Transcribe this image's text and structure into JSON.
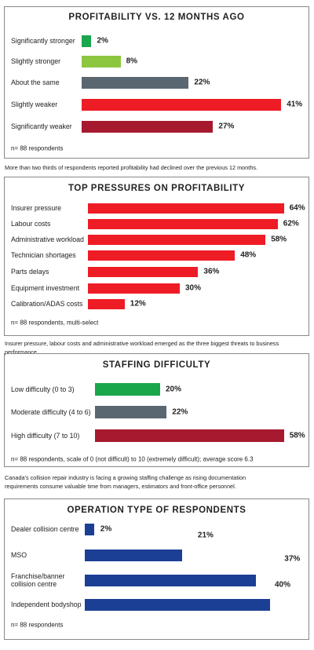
{
  "chart_data": [
    {
      "type": "bar",
      "title": "PROFITABILITY VS. 12 MONTHS AGO",
      "categories": [
        "Significantly stronger",
        "Slightly stronger",
        "About the same",
        "Slightly weaker",
        "Significantly weaker"
      ],
      "values": [
        2,
        8,
        22,
        41,
        27
      ],
      "value_labels": [
        "2%",
        "8%",
        "22%",
        "41%",
        "27%"
      ],
      "colors": [
        "#1aa64a",
        "#8cc63f",
        "#5b6770",
        "#ee1c25",
        "#a6192e"
      ],
      "note": "n= 88 respondents",
      "caption": "More than two thirds of respondents reported profitability had declined over the previous 12 months."
    },
    {
      "type": "bar",
      "title": "TOP PRESSURES ON PROFITABILITY",
      "categories": [
        "Insurer pressure",
        "Labour costs",
        "Administrative workload",
        "Technician shortages",
        "Parts delays",
        "Equipment investment",
        "Calibration/ADAS costs"
      ],
      "values": [
        64,
        62,
        58,
        48,
        36,
        30,
        12
      ],
      "value_labels": [
        "64%",
        "62%",
        "58%",
        "48%",
        "36%",
        "30%",
        "12%"
      ],
      "color": "#ee1c25",
      "note": "n= 88 respondents, multi-select",
      "caption": "Insurer pressure, labour costs and administrative workload emerged as the three biggest threats to business performance."
    },
    {
      "type": "bar",
      "title": "STAFFING DIFFICULTY",
      "categories": [
        "Low difficulty (0 to 3)",
        "Moderate difficulty (4 to 6)",
        "High difficulty (7 to 10)"
      ],
      "values": [
        20,
        22,
        58
      ],
      "value_labels": [
        "20%",
        "22%",
        "58%"
      ],
      "colors": [
        "#1aa64a",
        "#5b6770",
        "#a6192e"
      ],
      "note": "n= 88 respondents, scale of 0 (not difficult) to 10 (extremely difficult); average score 6.3",
      "caption": "Canada's collision repair industry is facing a growing staffing challenge as rising documentation requirements consume valuable time from managers, estimators and front-office personnel."
    },
    {
      "type": "bar",
      "title": "OPERATION TYPE OF RESPONDENTS",
      "categories": [
        "Dealer collision centre",
        "MSO",
        "Franchise/banner collision centre",
        "Independent bodyshop"
      ],
      "values": [
        2,
        21,
        37,
        40
      ],
      "value_labels": [
        "2%",
        "21%",
        "37%",
        "40%"
      ],
      "color": "#1b3f94",
      "note": "n= 88 respondents"
    }
  ]
}
